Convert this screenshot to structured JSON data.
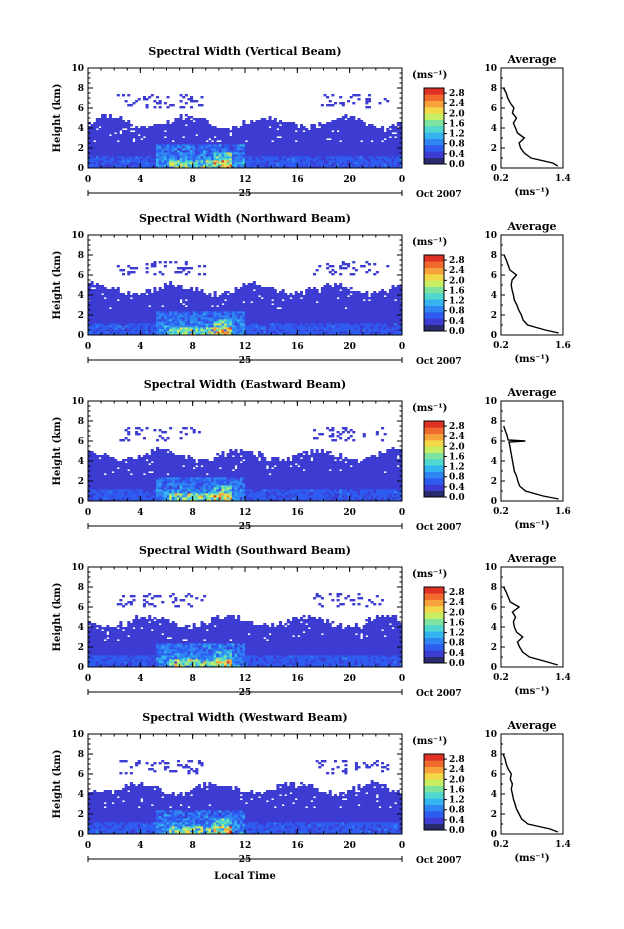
{
  "figure": {
    "xlabel": "Local Time",
    "date_label": "Oct 2007",
    "day_label": "25",
    "ylabel": "Height (km)",
    "colorbar_unit": "(ms⁻¹)",
    "avg_title": "Average",
    "avg_unit": "(ms⁻¹)"
  },
  "colormap": [
    "#2a2a6e",
    "#3c3cd2",
    "#2f5cf0",
    "#2f86f3",
    "#35b5ef",
    "#4fd7d0",
    "#7fe3a0",
    "#c8ef64",
    "#f3d94a",
    "#f7a23a",
    "#f06a2e",
    "#e03224"
  ],
  "chart_data": [
    {
      "type": "heatmap",
      "title": "Spectral Width (Vertical Beam)",
      "x_ticks": [
        "0",
        "4",
        "8",
        "12",
        "16",
        "20",
        "0"
      ],
      "y_ticks": [
        "0",
        "2",
        "4",
        "6",
        "8",
        "10"
      ],
      "xlim": [
        0,
        24
      ],
      "ylim": [
        0,
        10
      ],
      "colorbar_ticks": [
        "0.0",
        "0.4",
        "0.8",
        "1.2",
        "1.6",
        "2.0",
        "2.4",
        "2.8"
      ],
      "colorbar_range": [
        0,
        3.0
      ],
      "avg": {
        "type": "line",
        "x_ticks": [
          "0.2",
          "1.4"
        ],
        "xlim": [
          0.2,
          1.4
        ],
        "ylim": [
          0,
          10
        ],
        "height_km": [
          0.2,
          0.5,
          1.0,
          1.5,
          2.0,
          2.5,
          3.0,
          3.5,
          4.0,
          4.5,
          5.0,
          5.5,
          6.0,
          6.5,
          7.0,
          7.5,
          8.0
        ],
        "width_ms": [
          1.3,
          1.2,
          0.78,
          0.65,
          0.58,
          0.55,
          0.65,
          0.52,
          0.48,
          0.44,
          0.5,
          0.42,
          0.45,
          0.38,
          0.33,
          0.3,
          0.25
        ]
      }
    },
    {
      "type": "heatmap",
      "title": "Spectral Width (Northward Beam)",
      "x_ticks": [
        "0",
        "4",
        "8",
        "12",
        "16",
        "20",
        "0"
      ],
      "y_ticks": [
        "0",
        "2",
        "4",
        "6",
        "8",
        "10"
      ],
      "xlim": [
        0,
        24
      ],
      "ylim": [
        0,
        10
      ],
      "colorbar_ticks": [
        "0.0",
        "0.4",
        "0.8",
        "1.2",
        "1.6",
        "2.0",
        "2.4",
        "2.8"
      ],
      "colorbar_range": [
        0,
        3.0
      ],
      "avg": {
        "type": "line",
        "x_ticks": [
          "0.2",
          "1.6"
        ],
        "xlim": [
          0.2,
          1.6
        ],
        "ylim": [
          0,
          10
        ],
        "height_km": [
          0.2,
          0.5,
          1.0,
          1.5,
          2.0,
          2.5,
          3.0,
          3.5,
          4.0,
          4.5,
          5.0,
          5.5,
          6.0,
          6.5,
          7.0,
          7.5,
          8.0
        ],
        "width_ms": [
          1.5,
          1.2,
          0.8,
          0.7,
          0.66,
          0.6,
          0.56,
          0.5,
          0.48,
          0.45,
          0.43,
          0.45,
          0.55,
          0.4,
          0.36,
          0.32,
          0.27
        ]
      }
    },
    {
      "type": "heatmap",
      "title": "Spectral Width (Eastward Beam)",
      "x_ticks": [
        "0",
        "4",
        "8",
        "12",
        "16",
        "20",
        "0"
      ],
      "y_ticks": [
        "0",
        "2",
        "4",
        "6",
        "8",
        "10"
      ],
      "xlim": [
        0,
        24
      ],
      "ylim": [
        0,
        10
      ],
      "colorbar_ticks": [
        "0.0",
        "0.4",
        "0.8",
        "1.2",
        "1.6",
        "2.0",
        "2.4",
        "2.8"
      ],
      "colorbar_range": [
        0,
        3.0
      ],
      "avg": {
        "type": "line",
        "x_ticks": [
          "0.2",
          "1.6"
        ],
        "xlim": [
          0.2,
          1.6
        ],
        "ylim": [
          0,
          10
        ],
        "height_km": [
          0.2,
          0.5,
          1.0,
          1.5,
          2.0,
          2.5,
          3.0,
          3.5,
          4.0,
          4.5,
          5.0,
          5.5,
          5.9,
          6.0,
          6.1,
          6.5,
          7.0,
          7.5
        ],
        "width_ms": [
          1.5,
          1.15,
          0.75,
          0.62,
          0.58,
          0.55,
          0.5,
          0.48,
          0.46,
          0.44,
          0.42,
          0.4,
          0.38,
          0.75,
          0.36,
          0.34,
          0.3,
          0.26
        ]
      }
    },
    {
      "type": "heatmap",
      "title": "Spectral Width (Southward Beam)",
      "x_ticks": [
        "0",
        "4",
        "8",
        "12",
        "16",
        "20",
        "0"
      ],
      "y_ticks": [
        "0",
        "2",
        "4",
        "6",
        "8",
        "10"
      ],
      "xlim": [
        0,
        24
      ],
      "ylim": [
        0,
        10
      ],
      "colorbar_ticks": [
        "0.0",
        "0.4",
        "0.8",
        "1.2",
        "1.6",
        "2.0",
        "2.4",
        "2.8"
      ],
      "colorbar_range": [
        0,
        3.0
      ],
      "avg": {
        "type": "line",
        "x_ticks": [
          "0.2",
          "1.4"
        ],
        "xlim": [
          0.2,
          1.4
        ],
        "ylim": [
          0,
          10
        ],
        "height_km": [
          0.2,
          0.5,
          1.0,
          1.5,
          2.0,
          2.5,
          3.0,
          3.5,
          4.0,
          4.5,
          5.0,
          5.5,
          6.0,
          6.5,
          7.0,
          7.5,
          8.0
        ],
        "width_ms": [
          1.3,
          1.1,
          0.75,
          0.62,
          0.56,
          0.52,
          0.62,
          0.5,
          0.46,
          0.44,
          0.48,
          0.42,
          0.55,
          0.38,
          0.34,
          0.3,
          0.25
        ]
      }
    },
    {
      "type": "heatmap",
      "title": "Spectral Width (Westward Beam)",
      "x_ticks": [
        "0",
        "4",
        "8",
        "12",
        "16",
        "20",
        "0"
      ],
      "y_ticks": [
        "0",
        "2",
        "4",
        "6",
        "8",
        "10"
      ],
      "xlim": [
        0,
        24
      ],
      "ylim": [
        0,
        10
      ],
      "colorbar_ticks": [
        "0.0",
        "0.4",
        "0.8",
        "1.2",
        "1.6",
        "2.0",
        "2.4",
        "2.8"
      ],
      "colorbar_range": [
        0,
        3.0
      ],
      "avg": {
        "type": "line",
        "x_ticks": [
          "0.2",
          "1.4"
        ],
        "xlim": [
          0.2,
          1.4
        ],
        "ylim": [
          0,
          10
        ],
        "height_km": [
          0.2,
          0.5,
          1.0,
          1.5,
          2.0,
          2.5,
          3.0,
          3.5,
          4.0,
          4.5,
          5.0,
          5.5,
          6.0,
          6.5,
          7.0,
          7.5,
          8.0
        ],
        "width_ms": [
          1.3,
          1.15,
          0.72,
          0.6,
          0.55,
          0.5,
          0.47,
          0.44,
          0.42,
          0.4,
          0.42,
          0.38,
          0.4,
          0.34,
          0.3,
          0.28,
          0.24
        ]
      }
    }
  ]
}
